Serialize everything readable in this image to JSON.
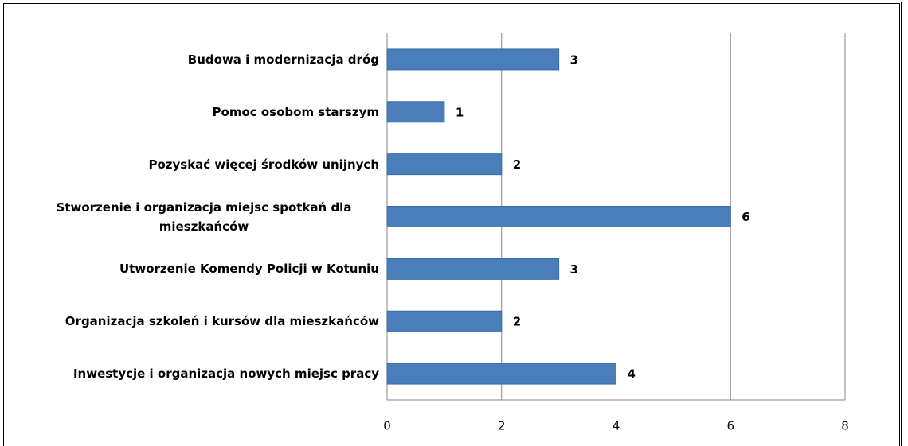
{
  "chart_data": {
    "type": "bar",
    "orientation": "horizontal",
    "categories": [
      "Budowa i modernizacja dróg",
      "Pomoc osobom starszym",
      "Pozyskać więcej środków unijnych",
      "Stworzenie i organizacja miejsc spotkań dla mieszkańców",
      "Utworzenie Komendy Policji w Kotuniu",
      "Organizacja szkoleń i kursów dla mieszkańców",
      "Inwestycje i organizacja nowych miejsc pracy"
    ],
    "values": [
      3,
      1,
      2,
      6,
      3,
      2,
      4
    ],
    "color": "#4a7ebb",
    "xlim": [
      0,
      8
    ],
    "xticks": [
      0,
      2,
      4,
      6,
      8
    ],
    "grid": true
  }
}
